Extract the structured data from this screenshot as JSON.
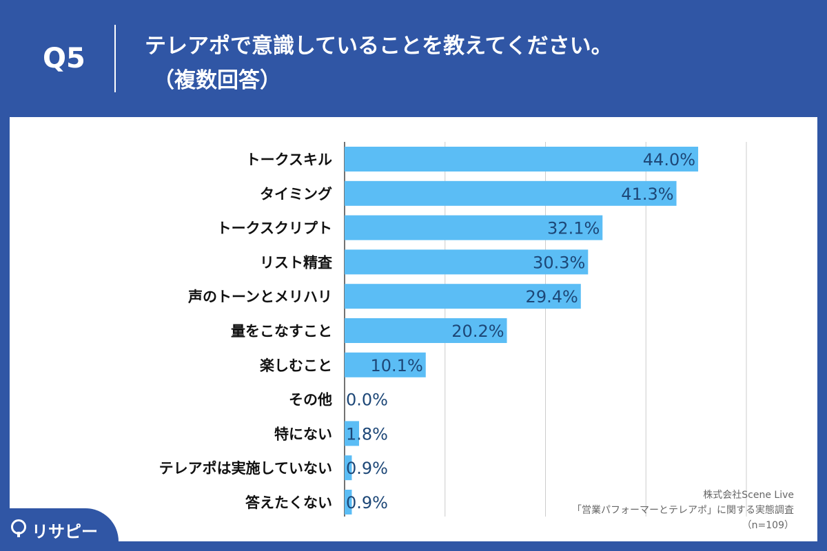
{
  "header": {
    "q_label": "Q5",
    "title": "テレアポで意識していることを教えてください。",
    "subtitle": "（複数回答）"
  },
  "source": {
    "company": "株式会社Scene Live",
    "survey": "「営業パフォーマーとテレアポ」に関する実態調査",
    "sample": "（n=109）"
  },
  "logo": {
    "icon": "pin-icon",
    "text": "リサピー"
  },
  "colors": {
    "background": "#3056a5",
    "bar": "#5bbdf5",
    "value_text": "#1d4777",
    "grid": "#cccccc"
  },
  "chart_data": {
    "type": "bar",
    "orientation": "horizontal",
    "categories": [
      "トークスキル",
      "タイミング",
      "トークスクリプト",
      "リスト精査",
      "声のトーンとメリハリ",
      "量をこなすこと",
      "楽しむこと",
      "その他",
      "特にない",
      "テレアポは実施していない",
      "答えたくない"
    ],
    "values": [
      44.0,
      41.3,
      32.1,
      30.3,
      29.4,
      20.2,
      10.1,
      0.0,
      1.8,
      0.9,
      0.9
    ],
    "value_labels": [
      "44.0%",
      "41.3%",
      "32.1%",
      "30.3%",
      "29.4%",
      "20.2%",
      "10.1%",
      "0.0%",
      "1.8%",
      "0.9%",
      "0.9%"
    ],
    "xlim": [
      0,
      50
    ],
    "grid": true,
    "gridline_values": [
      0,
      12.5,
      25,
      37.5,
      50
    ]
  }
}
